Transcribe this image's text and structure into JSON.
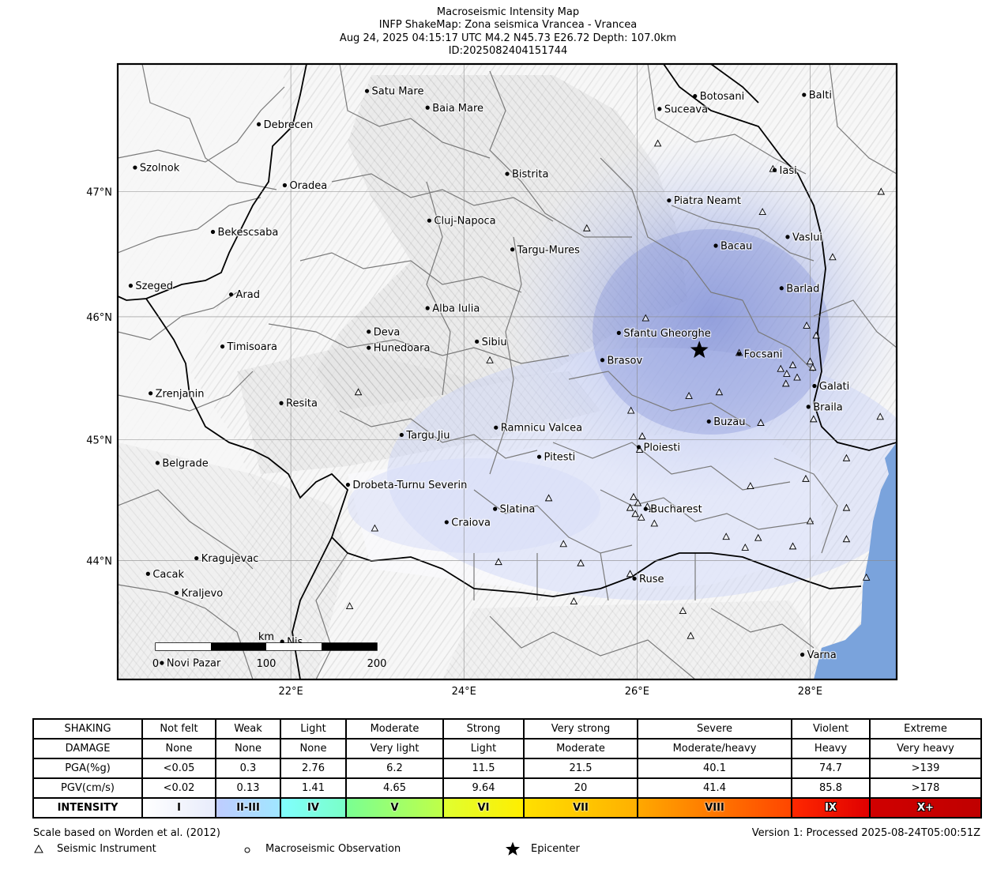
{
  "title": {
    "line1": "Macroseismic Intensity Map",
    "line2": "INFP ShakeMap: Zona seismica Vrancea - Vrancea",
    "line3": "Aug 24, 2025 04:15:17 UTC M4.2 N45.73 E26.72 Depth: 107.0km",
    "line4": "ID:2025082404151744"
  },
  "map": {
    "lon_range": [
      20.0,
      29.0
    ],
    "lat_range": [
      43.0,
      48.0
    ],
    "lon_ticks": [
      {
        "value": 22,
        "label": "22°E"
      },
      {
        "value": 24,
        "label": "24°E"
      },
      {
        "value": 26,
        "label": "26°E"
      },
      {
        "value": 28,
        "label": "28°E"
      }
    ],
    "lat_ticks": [
      {
        "value": 44,
        "label": "44°N"
      },
      {
        "value": 45,
        "label": "45°N"
      },
      {
        "value": 46,
        "label": "46°N"
      },
      {
        "value": 47,
        "label": "47°N"
      }
    ],
    "colors": {
      "sea": "#7aa3dc",
      "land": "#f2f2f2",
      "shaking": "#8a9bde",
      "border": "#000000",
      "region": "#777777"
    },
    "epicenter": {
      "lon": 26.72,
      "lat": 45.73
    },
    "cities": [
      {
        "name": "Satu Mare",
        "lon": 22.88,
        "lat": 47.79
      },
      {
        "name": "Baia Mare",
        "lon": 23.58,
        "lat": 47.66
      },
      {
        "name": "Debrecen",
        "lon": 21.63,
        "lat": 47.53
      },
      {
        "name": "Botosani",
        "lon": 26.67,
        "lat": 47.75
      },
      {
        "name": "Balti",
        "lon": 27.93,
        "lat": 47.76
      },
      {
        "name": "Suceava",
        "lon": 26.26,
        "lat": 47.65
      },
      {
        "name": "Szolnok",
        "lon": 20.2,
        "lat": 47.19
      },
      {
        "name": "Bistrita",
        "lon": 24.5,
        "lat": 47.14
      },
      {
        "name": "Iasi",
        "lon": 27.59,
        "lat": 47.17
      },
      {
        "name": "Oradea",
        "lon": 21.93,
        "lat": 47.05
      },
      {
        "name": "Piatra Neamt",
        "lon": 26.37,
        "lat": 46.93
      },
      {
        "name": "Bekescsaba",
        "lon": 21.1,
        "lat": 46.68
      },
      {
        "name": "Cluj-Napoca",
        "lon": 23.6,
        "lat": 46.77
      },
      {
        "name": "Vaslui",
        "lon": 27.74,
        "lat": 46.64
      },
      {
        "name": "Targu-Mures",
        "lon": 24.56,
        "lat": 46.54
      },
      {
        "name": "Bacau",
        "lon": 26.91,
        "lat": 46.57
      },
      {
        "name": "Szeged",
        "lon": 20.15,
        "lat": 46.25
      },
      {
        "name": "Arad",
        "lon": 21.31,
        "lat": 46.18
      },
      {
        "name": "Barlad",
        "lon": 27.67,
        "lat": 46.23
      },
      {
        "name": "Alba Iulia",
        "lon": 23.58,
        "lat": 46.07
      },
      {
        "name": "Deva",
        "lon": 22.9,
        "lat": 45.88
      },
      {
        "name": "Sfantu Gheorghe",
        "lon": 25.79,
        "lat": 45.87
      },
      {
        "name": "Sibiu",
        "lon": 24.15,
        "lat": 45.8
      },
      {
        "name": "Timisoara",
        "lon": 21.21,
        "lat": 45.76
      },
      {
        "name": "Hunedoara",
        "lon": 22.9,
        "lat": 45.75
      },
      {
        "name": "Focsani",
        "lon": 27.18,
        "lat": 45.7
      },
      {
        "name": "Brasov",
        "lon": 25.6,
        "lat": 45.65
      },
      {
        "name": "Zrenjanin",
        "lon": 20.38,
        "lat": 45.38
      },
      {
        "name": "Galati",
        "lon": 28.05,
        "lat": 45.44
      },
      {
        "name": "Resita",
        "lon": 21.89,
        "lat": 45.3
      },
      {
        "name": "Braila",
        "lon": 27.98,
        "lat": 45.27
      },
      {
        "name": "Buzau",
        "lon": 26.83,
        "lat": 45.15
      },
      {
        "name": "Ramnicu Valcea",
        "lon": 24.37,
        "lat": 45.1
      },
      {
        "name": "Targu Jiu",
        "lon": 23.28,
        "lat": 45.04
      },
      {
        "name": "Ploiesti",
        "lon": 26.02,
        "lat": 44.94
      },
      {
        "name": "Pitesti",
        "lon": 24.87,
        "lat": 44.86
      },
      {
        "name": "Belgrade",
        "lon": 20.46,
        "lat": 44.81
      },
      {
        "name": "Drobeta-Turnu Severin",
        "lon": 22.66,
        "lat": 44.63
      },
      {
        "name": "Slatina",
        "lon": 24.36,
        "lat": 44.43
      },
      {
        "name": "Bucharest",
        "lon": 26.1,
        "lat": 44.43
      },
      {
        "name": "Craiova",
        "lon": 23.8,
        "lat": 44.32
      },
      {
        "name": "Kragujevac",
        "lon": 20.91,
        "lat": 44.02
      },
      {
        "name": "Cacak",
        "lon": 20.35,
        "lat": 43.89
      },
      {
        "name": "Ruse",
        "lon": 25.97,
        "lat": 43.85
      },
      {
        "name": "Kraljevo",
        "lon": 20.68,
        "lat": 43.73
      },
      {
        "name": "Varna",
        "lon": 27.91,
        "lat": 43.21
      },
      {
        "name": "Nis",
        "lon": 21.9,
        "lat": 43.32
      },
      {
        "name": "Novi Pazar",
        "lon": 20.51,
        "lat": 43.14
      }
    ],
    "stations": [
      [
        26.24,
        47.38
      ],
      [
        27.57,
        47.18
      ],
      [
        28.82,
        47.0
      ],
      [
        27.45,
        46.84
      ],
      [
        25.42,
        46.71
      ],
      [
        28.26,
        46.48
      ],
      [
        27.96,
        45.93
      ],
      [
        28.07,
        45.85
      ],
      [
        26.1,
        45.99
      ],
      [
        27.18,
        45.71
      ],
      [
        27.8,
        45.61
      ],
      [
        27.66,
        45.58
      ],
      [
        27.85,
        45.51
      ],
      [
        28.0,
        45.64
      ],
      [
        28.03,
        45.59
      ],
      [
        27.73,
        45.54
      ],
      [
        27.72,
        45.46
      ],
      [
        26.95,
        45.39
      ],
      [
        26.6,
        45.36
      ],
      [
        25.93,
        45.24
      ],
      [
        24.3,
        45.65
      ],
      [
        22.78,
        45.39
      ],
      [
        26.06,
        45.03
      ],
      [
        26.03,
        44.92
      ],
      [
        27.43,
        45.14
      ],
      [
        28.04,
        45.17
      ],
      [
        28.81,
        45.19
      ],
      [
        28.42,
        44.85
      ],
      [
        27.95,
        44.68
      ],
      [
        27.31,
        44.62
      ],
      [
        24.98,
        44.52
      ],
      [
        25.96,
        44.53
      ],
      [
        25.92,
        44.44
      ],
      [
        26.01,
        44.48
      ],
      [
        26.12,
        44.45
      ],
      [
        26.18,
        44.43
      ],
      [
        25.98,
        44.39
      ],
      [
        26.05,
        44.36
      ],
      [
        26.2,
        44.31
      ],
      [
        28.0,
        44.33
      ],
      [
        28.42,
        44.44
      ],
      [
        22.97,
        44.27
      ],
      [
        25.15,
        44.14
      ],
      [
        24.4,
        43.99
      ],
      [
        25.35,
        43.98
      ],
      [
        27.03,
        44.2
      ],
      [
        27.4,
        44.19
      ],
      [
        27.25,
        44.11
      ],
      [
        27.8,
        44.12
      ],
      [
        28.42,
        44.18
      ],
      [
        25.92,
        43.89
      ],
      [
        28.65,
        43.86
      ],
      [
        22.68,
        43.62
      ],
      [
        25.27,
        43.66
      ],
      [
        26.53,
        43.58
      ],
      [
        26.62,
        43.37
      ]
    ],
    "scale_bar": {
      "unit": "km",
      "ticks": [
        "0",
        "100",
        "200"
      ]
    }
  },
  "legend": {
    "rows": {
      "shaking": [
        "SHAKING",
        "Not felt",
        "Weak",
        "Light",
        "Moderate",
        "Strong",
        "Very strong",
        "Severe",
        "Violent",
        "Extreme"
      ],
      "damage": [
        "DAMAGE",
        "None",
        "None",
        "None",
        "Very light",
        "Light",
        "Moderate",
        "Moderate/heavy",
        "Heavy",
        "Very heavy"
      ],
      "pga": [
        "PGA(%g)",
        "<0.05",
        "0.3",
        "2.76",
        "6.2",
        "11.5",
        "21.5",
        "40.1",
        "74.7",
        ">139"
      ],
      "pgv": [
        "PGV(cm/s)",
        "<0.02",
        "0.13",
        "1.41",
        "4.65",
        "9.64",
        "20",
        "41.4",
        "85.8",
        ">178"
      ],
      "intensity": [
        "INTENSITY",
        "I",
        "II-III",
        "IV",
        "V",
        "VI",
        "VII",
        "VIII",
        "IX",
        "X+"
      ]
    },
    "intensity_colors": [
      [
        "#ffffff",
        "#e8ecfb"
      ],
      [
        "#bfccff",
        "#a0e6ff"
      ],
      [
        "#80ffff",
        "#7affc8"
      ],
      [
        "#7aff93",
        "#bfff48"
      ],
      [
        "#e0ff30",
        "#ffee00"
      ],
      [
        "#ffe000",
        "#ffb000"
      ],
      [
        "#ffa800",
        "#ff4600"
      ],
      [
        "#ff2800",
        "#e00000"
      ],
      [
        "#d00000",
        "#c00000"
      ]
    ]
  },
  "footer": {
    "scale_note": "Scale based on Worden et al. (2012)",
    "version": "Version 1: Processed 2025-08-24T05:00:51Z",
    "legend_instrument": "Seismic Instrument",
    "legend_observation": "Macroseismic Observation",
    "legend_epicenter": "Epicenter"
  }
}
